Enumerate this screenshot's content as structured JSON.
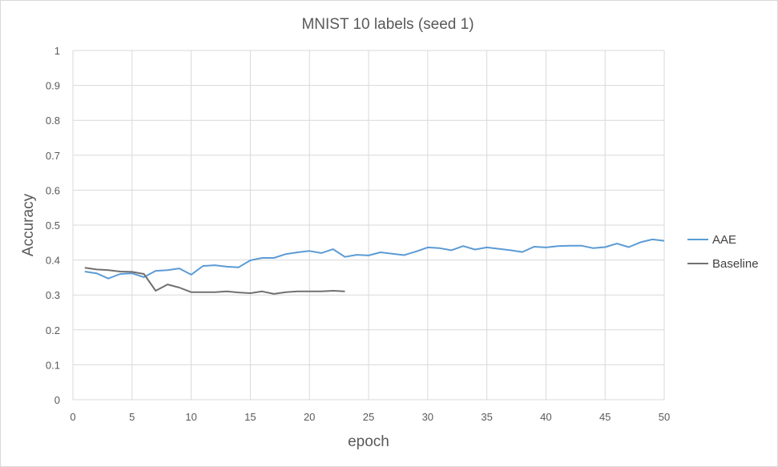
{
  "chart_data": {
    "type": "line",
    "title": "MNIST 10 labels (seed 1)",
    "xlabel": "epoch",
    "ylabel": "Accuracy",
    "xlim": [
      0,
      50
    ],
    "ylim": [
      0,
      1
    ],
    "xticks": [
      "0",
      "5",
      "10",
      "15",
      "20",
      "25",
      "30",
      "35",
      "40",
      "45",
      "50"
    ],
    "yticks": [
      "0",
      "0.1",
      "0.2",
      "0.3",
      "0.4",
      "0.5",
      "0.6",
      "0.7",
      "0.8",
      "0.9",
      "1"
    ],
    "grid": true,
    "legend_position": "right",
    "series": [
      {
        "name": "AAE",
        "color": "#5b9bd5",
        "x": [
          1,
          2,
          3,
          4,
          5,
          6,
          7,
          8,
          9,
          10,
          11,
          12,
          13,
          14,
          15,
          16,
          17,
          18,
          19,
          20,
          21,
          22,
          23,
          24,
          25,
          26,
          27,
          28,
          29,
          30,
          31,
          32,
          33,
          34,
          35,
          36,
          37,
          38,
          39,
          40,
          41,
          42,
          43,
          44,
          45,
          46,
          47,
          48,
          49,
          50
        ],
        "values": [
          0.367,
          0.362,
          0.347,
          0.36,
          0.362,
          0.351,
          0.369,
          0.371,
          0.376,
          0.358,
          0.383,
          0.385,
          0.381,
          0.379,
          0.399,
          0.406,
          0.406,
          0.417,
          0.422,
          0.426,
          0.42,
          0.431,
          0.409,
          0.415,
          0.413,
          0.422,
          0.418,
          0.414,
          0.424,
          0.436,
          0.434,
          0.428,
          0.44,
          0.43,
          0.436,
          0.432,
          0.428,
          0.423,
          0.438,
          0.436,
          0.44,
          0.441,
          0.441,
          0.434,
          0.437,
          0.447,
          0.437,
          0.451,
          0.459,
          0.455
        ]
      },
      {
        "name": "Baseline",
        "color": "#707070",
        "x": [
          1,
          2,
          3,
          4,
          5,
          6,
          7,
          8,
          9,
          10,
          11,
          12,
          13,
          14,
          15,
          16,
          17,
          18,
          19,
          20,
          21,
          22,
          23
        ],
        "values": [
          0.378,
          0.373,
          0.371,
          0.367,
          0.366,
          0.36,
          0.312,
          0.33,
          0.321,
          0.308,
          0.308,
          0.308,
          0.31,
          0.307,
          0.305,
          0.31,
          0.303,
          0.308,
          0.31,
          0.31,
          0.31,
          0.312,
          0.31
        ]
      }
    ]
  }
}
